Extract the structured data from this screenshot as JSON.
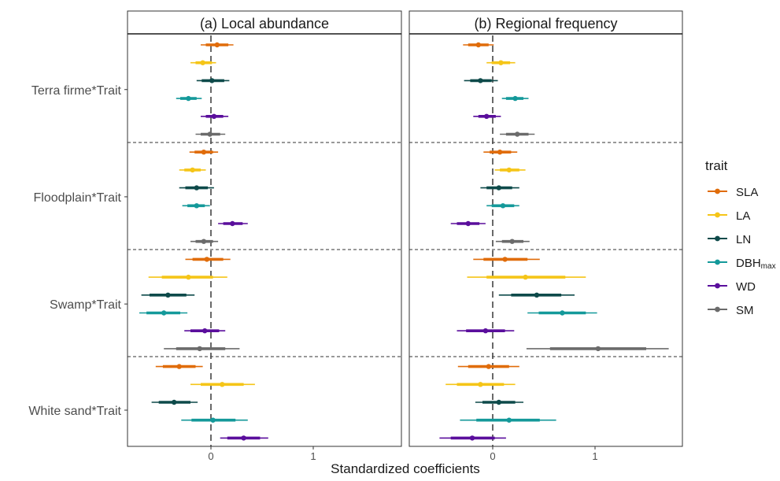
{
  "chart_data": {
    "type": "forest",
    "xlabel": "Standardized coefficients",
    "xlim": [
      -0.8,
      1.85
    ],
    "x_ticks": [
      0,
      1
    ],
    "reference_line_x": 0,
    "grid": false,
    "legend": {
      "title": "trait",
      "position": "right"
    },
    "groups": [
      "Terra firme*Trait",
      "Floodplain*Trait",
      "Swamp*Trait",
      "White sand*Trait"
    ],
    "series": [
      {
        "name": "SLA",
        "label_main": "SLA",
        "color": "#E06C0A"
      },
      {
        "name": "LA",
        "label_main": "LA",
        "color": "#F5C518"
      },
      {
        "name": "LN",
        "label_main": "LN",
        "color": "#0E4A4A"
      },
      {
        "name": "DBHmax",
        "label_main": "DBH",
        "label_sub": "max",
        "color": "#14999A"
      },
      {
        "name": "WD",
        "label_main": "WD",
        "color": "#5A0E9C"
      },
      {
        "name": "SM",
        "label_main": "SM",
        "color": "#6B6B6B"
      }
    ],
    "panels": [
      {
        "title": "(a) Local abundance",
        "data": [
          [
            {
              "est": 0.06,
              "lo95": -0.1,
              "hi95": 0.22,
              "lo80": -0.05,
              "hi80": 0.17
            },
            {
              "est": -0.08,
              "lo95": -0.2,
              "hi95": 0.05,
              "lo80": -0.15,
              "hi80": 0.01
            },
            {
              "est": 0.01,
              "lo95": -0.14,
              "hi95": 0.18,
              "lo80": -0.09,
              "hi80": 0.13
            },
            {
              "est": -0.22,
              "lo95": -0.34,
              "hi95": -0.09,
              "lo80": -0.3,
              "hi80": -0.14
            },
            {
              "est": 0.03,
              "lo95": -0.1,
              "hi95": 0.17,
              "lo80": -0.05,
              "hi80": 0.12
            },
            {
              "est": -0.01,
              "lo95": -0.15,
              "hi95": 0.14,
              "lo80": -0.1,
              "hi80": 0.09
            }
          ],
          [
            {
              "est": -0.07,
              "lo95": -0.21,
              "hi95": 0.07,
              "lo80": -0.16,
              "hi80": 0.02
            },
            {
              "est": -0.18,
              "lo95": -0.31,
              "hi95": -0.05,
              "lo80": -0.26,
              "hi80": -0.1
            },
            {
              "est": -0.14,
              "lo95": -0.31,
              "hi95": 0.03,
              "lo80": -0.25,
              "hi80": -0.03
            },
            {
              "est": -0.14,
              "lo95": -0.28,
              "hi95": -0.01,
              "lo80": -0.23,
              "hi80": -0.06
            },
            {
              "est": 0.21,
              "lo95": 0.07,
              "hi95": 0.36,
              "lo80": 0.12,
              "hi80": 0.31
            },
            {
              "est": -0.07,
              "lo95": -0.2,
              "hi95": 0.07,
              "lo80": -0.15,
              "hi80": 0.02
            }
          ],
          [
            {
              "est": -0.04,
              "lo95": -0.25,
              "hi95": 0.19,
              "lo80": -0.18,
              "hi80": 0.12
            },
            {
              "est": -0.22,
              "lo95": -0.61,
              "hi95": 0.16,
              "lo80": -0.48,
              "hi80": 0.02
            },
            {
              "est": -0.42,
              "lo95": -0.68,
              "hi95": -0.16,
              "lo80": -0.6,
              "hi80": -0.24
            },
            {
              "est": -0.46,
              "lo95": -0.7,
              "hi95": -0.23,
              "lo80": -0.63,
              "hi80": -0.3
            },
            {
              "est": -0.06,
              "lo95": -0.26,
              "hi95": 0.14,
              "lo80": -0.2,
              "hi80": 0.08
            },
            {
              "est": -0.11,
              "lo95": -0.46,
              "hi95": 0.28,
              "lo80": -0.34,
              "hi80": 0.14
            }
          ],
          [
            {
              "est": -0.31,
              "lo95": -0.54,
              "hi95": -0.08,
              "lo80": -0.47,
              "hi80": -0.15
            },
            {
              "est": 0.11,
              "lo95": -0.2,
              "hi95": 0.43,
              "lo80": -0.1,
              "hi80": 0.32
            },
            {
              "est": -0.36,
              "lo95": -0.58,
              "hi95": -0.13,
              "lo80": -0.51,
              "hi80": -0.2
            },
            {
              "est": 0.02,
              "lo95": -0.29,
              "hi95": 0.36,
              "lo80": -0.19,
              "hi80": 0.24
            },
            {
              "est": 0.32,
              "lo95": 0.09,
              "hi95": 0.56,
              "lo80": 0.16,
              "hi80": 0.48
            }
          ]
        ]
      },
      {
        "title": "(b) Regional frequency",
        "data": [
          [
            {
              "est": -0.14,
              "lo95": -0.29,
              "hi95": 0.01,
              "lo80": -0.24,
              "hi80": -0.04
            },
            {
              "est": 0.08,
              "lo95": -0.06,
              "hi95": 0.22,
              "lo80": -0.01,
              "hi80": 0.17
            },
            {
              "est": -0.12,
              "lo95": -0.28,
              "hi95": 0.05,
              "lo80": -0.22,
              "hi80": -0.01
            },
            {
              "est": 0.22,
              "lo95": 0.09,
              "hi95": 0.35,
              "lo80": 0.13,
              "hi80": 0.3
            },
            {
              "est": -0.06,
              "lo95": -0.19,
              "hi95": 0.08,
              "lo80": -0.14,
              "hi80": 0.03
            },
            {
              "est": 0.24,
              "lo95": 0.07,
              "hi95": 0.41,
              "lo80": 0.13,
              "hi80": 0.35
            }
          ],
          [
            {
              "est": 0.07,
              "lo95": -0.09,
              "hi95": 0.24,
              "lo80": -0.03,
              "hi80": 0.18
            },
            {
              "est": 0.16,
              "lo95": 0.02,
              "hi95": 0.32,
              "lo80": 0.07,
              "hi80": 0.26
            },
            {
              "est": 0.06,
              "lo95": -0.12,
              "hi95": 0.26,
              "lo80": -0.06,
              "hi80": 0.19
            },
            {
              "est": 0.1,
              "lo95": -0.06,
              "hi95": 0.26,
              "lo80": -0.01,
              "hi80": 0.21
            },
            {
              "est": -0.24,
              "lo95": -0.41,
              "hi95": -0.07,
              "lo80": -0.35,
              "hi80": -0.13
            },
            {
              "est": 0.19,
              "lo95": 0.03,
              "hi95": 0.36,
              "lo80": 0.09,
              "hi80": 0.3
            }
          ],
          [
            {
              "est": 0.12,
              "lo95": -0.19,
              "hi95": 0.46,
              "lo80": -0.09,
              "hi80": 0.34
            },
            {
              "est": 0.32,
              "lo95": -0.25,
              "hi95": 0.91,
              "lo80": -0.06,
              "hi80": 0.71
            },
            {
              "est": 0.43,
              "lo95": 0.06,
              "hi95": 0.8,
              "lo80": 0.18,
              "hi80": 0.67
            },
            {
              "est": 0.68,
              "lo95": 0.34,
              "hi95": 1.02,
              "lo80": 0.45,
              "hi80": 0.91
            },
            {
              "est": -0.07,
              "lo95": -0.35,
              "hi95": 0.21,
              "lo80": -0.26,
              "hi80": 0.12
            },
            {
              "est": 1.03,
              "lo95": 0.33,
              "hi95": 1.72,
              "lo80": 0.56,
              "hi80": 1.5
            }
          ],
          [
            {
              "est": -0.04,
              "lo95": -0.34,
              "hi95": 0.26,
              "lo80": -0.24,
              "hi80": 0.16
            },
            {
              "est": -0.12,
              "lo95": -0.46,
              "hi95": 0.22,
              "lo80": -0.35,
              "hi80": 0.11
            },
            {
              "est": 0.06,
              "lo95": -0.17,
              "hi95": 0.3,
              "lo80": -0.1,
              "hi80": 0.22
            },
            {
              "est": 0.16,
              "lo95": -0.32,
              "hi95": 0.62,
              "lo80": -0.16,
              "hi80": 0.46
            },
            {
              "est": -0.2,
              "lo95": -0.52,
              "hi95": 0.13,
              "lo80": -0.41,
              "hi80": 0.02
            }
          ]
        ]
      }
    ]
  }
}
